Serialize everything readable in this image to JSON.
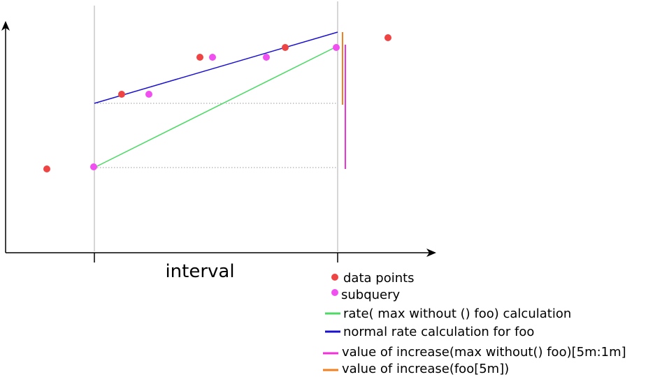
{
  "diagram": {
    "xlabel": "interval",
    "legend": [
      {
        "label": "data points",
        "marker": "dot",
        "color": "#ef4444"
      },
      {
        "label": "subquery",
        "marker": "dot",
        "color": "#f050f0"
      },
      {
        "label": "rate( max without () foo) calculation",
        "marker": "line",
        "color": "#4cd964"
      },
      {
        "label": "normal rate calculation for foo",
        "marker": "line",
        "color": "#1a10d0"
      },
      {
        "label": "value of increase(max without() foo)[5m:1m]",
        "marker": "line",
        "color": "#f030d8"
      },
      {
        "label": "value of increase(foo[5m])",
        "marker": "line",
        "color": "#f08020"
      }
    ]
  }
}
